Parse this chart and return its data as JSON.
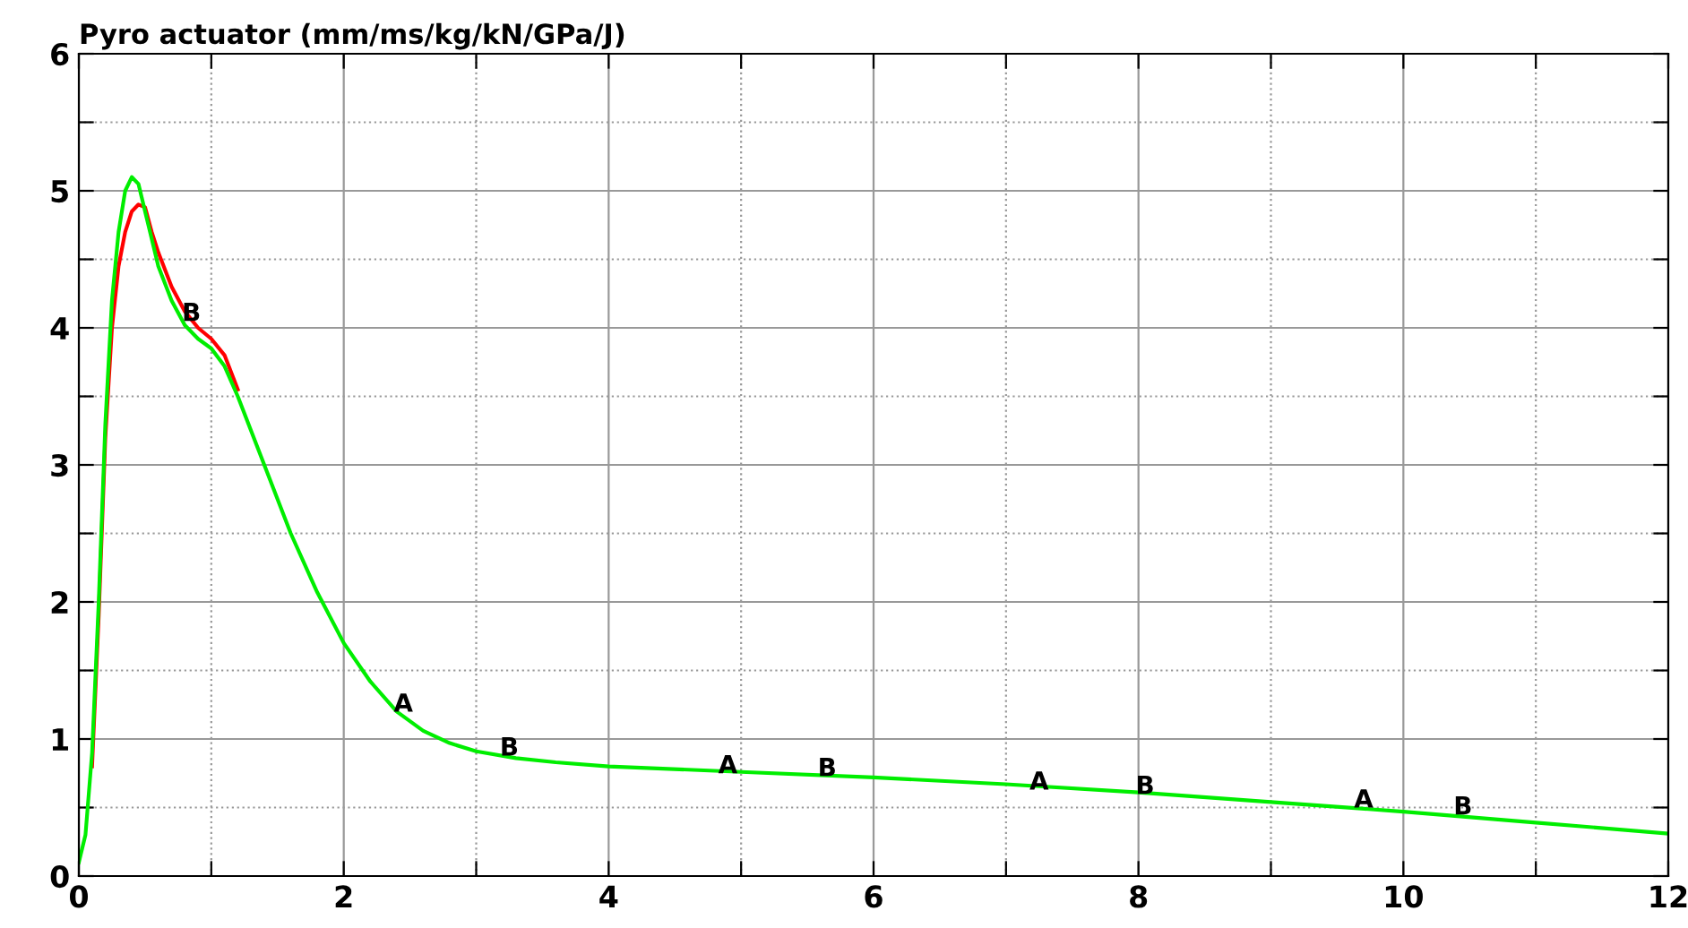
{
  "chart_data": {
    "type": "line",
    "title": "Pyro actuator (mm/ms/kg/kN/GPa/J)",
    "series": [
      {
        "color": "#ff0000",
        "x": [
          0.1,
          0.15,
          0.2,
          0.25,
          0.3,
          0.35,
          0.4,
          0.45,
          0.5,
          0.55,
          0.6,
          0.7,
          0.8,
          0.9,
          1.0,
          1.1,
          1.2
        ],
        "values": [
          0.8,
          1.9,
          3.2,
          4.0,
          4.45,
          4.7,
          4.85,
          4.9,
          4.88,
          4.7,
          4.55,
          4.3,
          4.12,
          4.0,
          3.92,
          3.8,
          3.55
        ]
      },
      {
        "color": "#00ee00",
        "x": [
          0,
          0.05,
          0.1,
          0.15,
          0.2,
          0.25,
          0.3,
          0.35,
          0.4,
          0.45,
          0.5,
          0.6,
          0.7,
          0.8,
          0.9,
          1.0,
          1.1,
          1.2,
          1.4,
          1.6,
          1.8,
          2.0,
          2.2,
          2.4,
          2.6,
          2.8,
          3.0,
          3.3,
          3.6,
          4,
          5,
          6,
          7,
          8,
          9,
          10,
          11,
          12
        ],
        "values": [
          0.1,
          0.3,
          0.9,
          2.0,
          3.3,
          4.2,
          4.7,
          5.0,
          5.1,
          5.05,
          4.85,
          4.45,
          4.2,
          4.02,
          3.92,
          3.85,
          3.72,
          3.5,
          3.0,
          2.5,
          2.07,
          1.7,
          1.42,
          1.2,
          1.06,
          0.97,
          0.91,
          0.86,
          0.83,
          0.8,
          0.76,
          0.72,
          0.67,
          0.61,
          0.54,
          0.47,
          0.39,
          0.31
        ]
      }
    ],
    "annotations": [
      {
        "text": "B",
        "x": 0.85,
        "y": 4.1
      },
      {
        "text": "A",
        "x": 2.45,
        "y": 1.25
      },
      {
        "text": "B",
        "x": 3.25,
        "y": 0.93
      },
      {
        "text": "A",
        "x": 4.9,
        "y": 0.8
      },
      {
        "text": "B",
        "x": 5.65,
        "y": 0.78
      },
      {
        "text": "A",
        "x": 7.25,
        "y": 0.68
      },
      {
        "text": "B",
        "x": 8.05,
        "y": 0.65
      },
      {
        "text": "A",
        "x": 9.7,
        "y": 0.55
      },
      {
        "text": "B",
        "x": 10.45,
        "y": 0.5
      }
    ],
    "xlim": [
      0,
      12
    ],
    "ylim": [
      0,
      6
    ],
    "xticks": [
      0,
      {
        "value": 1,
        "label": null
      },
      2,
      {
        "value": 3,
        "label": null
      },
      4,
      {
        "value": 5,
        "label": null
      },
      6,
      {
        "value": 7,
        "label": null
      },
      8,
      {
        "value": 9,
        "label": null
      },
      10,
      {
        "value": 11,
        "label": null
      },
      12
    ],
    "yticks": [
      0,
      {
        "value": 0.5,
        "label": null
      },
      1,
      {
        "value": 1.5,
        "label": null
      },
      2,
      {
        "value": 2.5,
        "label": null
      },
      3,
      {
        "value": 3.5,
        "label": null
      },
      4,
      {
        "value": 4.5,
        "label": null
      },
      5,
      {
        "value": 5.5,
        "label": null
      },
      6
    ],
    "grid": true,
    "marker": "none",
    "line_style": "solid"
  }
}
